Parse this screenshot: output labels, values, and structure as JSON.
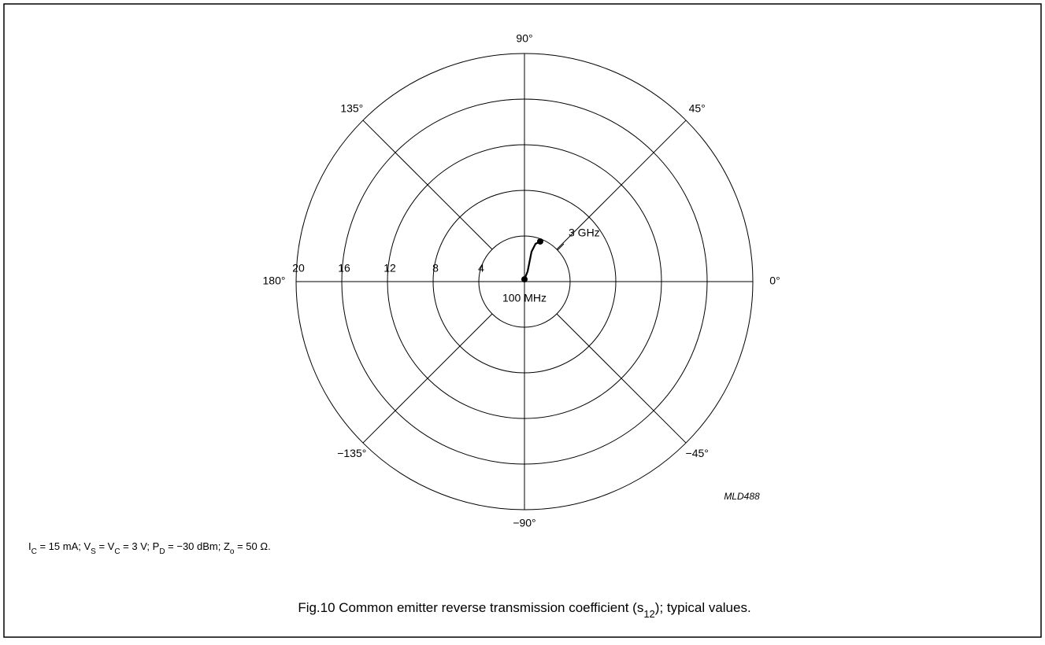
{
  "chart_data": {
    "type": "polar",
    "series": [
      {
        "color": "#000000",
        "angles": [
          90,
          72.9,
          75.4,
          76.7,
          73.7,
          68.6
        ],
        "values": [
          0.2,
          0.94,
          1.64,
          2.69,
          3.45,
          3.78
        ]
      }
    ],
    "rlim": [
      0,
      20
    ],
    "rticks": [
      4,
      8,
      12,
      16,
      20
    ],
    "angle_ticks": [
      {
        "value": 0,
        "label": "0°"
      },
      {
        "value": 45,
        "label": "45°"
      },
      {
        "value": 90,
        "label": "90°"
      },
      {
        "value": 135,
        "label": "135°"
      },
      {
        "value": 180,
        "label": "180°"
      },
      {
        "value": -135,
        "label": "−135°"
      },
      {
        "value": -90,
        "label": "−90°"
      },
      {
        "value": -45,
        "label": "−45°"
      }
    ],
    "annotations": {
      "end": "3 GHz",
      "start": "100 MHz",
      "code": "MLD488"
    },
    "note": [
      {
        "text": "I"
      },
      {
        "sub": "C"
      },
      {
        "text": " = 15 mA; V"
      },
      {
        "sub": "S"
      },
      {
        "text": " = V"
      },
      {
        "sub": "C"
      },
      {
        "text": " = 3 V; P"
      },
      {
        "sub": "D"
      },
      {
        "text": " = −30 dBm; Z"
      },
      {
        "sub": "o"
      },
      {
        "text": " = 50 Ω."
      }
    ],
    "caption": [
      {
        "text": "Fig.10  Common emitter reverse transmission coefficient (s"
      },
      {
        "sub": "12"
      },
      {
        "text": "); typical values."
      }
    ]
  }
}
